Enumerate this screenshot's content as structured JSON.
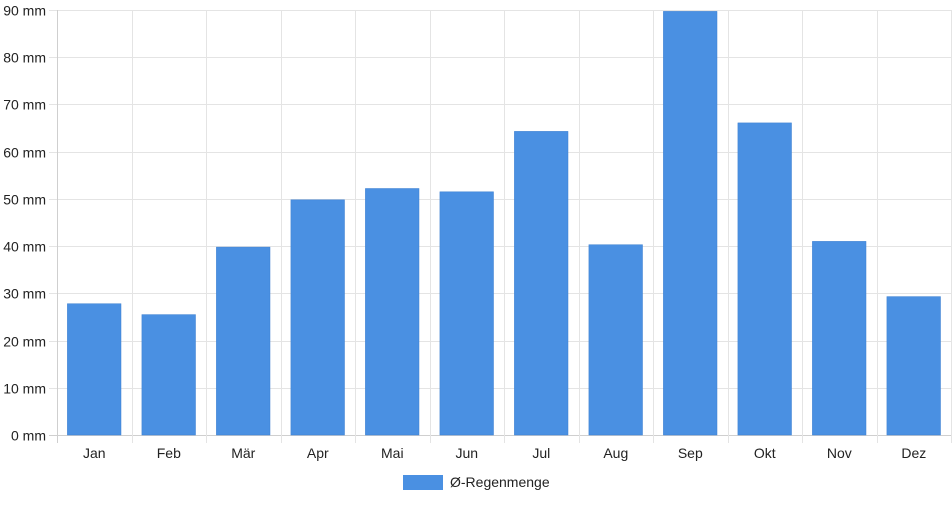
{
  "chart_data": {
    "type": "bar",
    "categories": [
      "Jan",
      "Feb",
      "Mär",
      "Apr",
      "Mai",
      "Jun",
      "Jul",
      "Aug",
      "Sep",
      "Okt",
      "Nov",
      "Dez"
    ],
    "series": [
      {
        "name": "Ø-Regenmenge",
        "color": "#4a90e2",
        "values": [
          27.8,
          25.5,
          39.8,
          49.8,
          52.2,
          51.5,
          64.3,
          40.3,
          89.7,
          66.1,
          41.0,
          29.3
        ]
      }
    ],
    "ylim": [
      0,
      90
    ],
    "y_ticks": [
      0,
      10,
      20,
      30,
      40,
      50,
      60,
      70,
      80,
      90
    ],
    "y_tick_suffix": " mm",
    "grid": true,
    "legend_position": "bottom"
  }
}
